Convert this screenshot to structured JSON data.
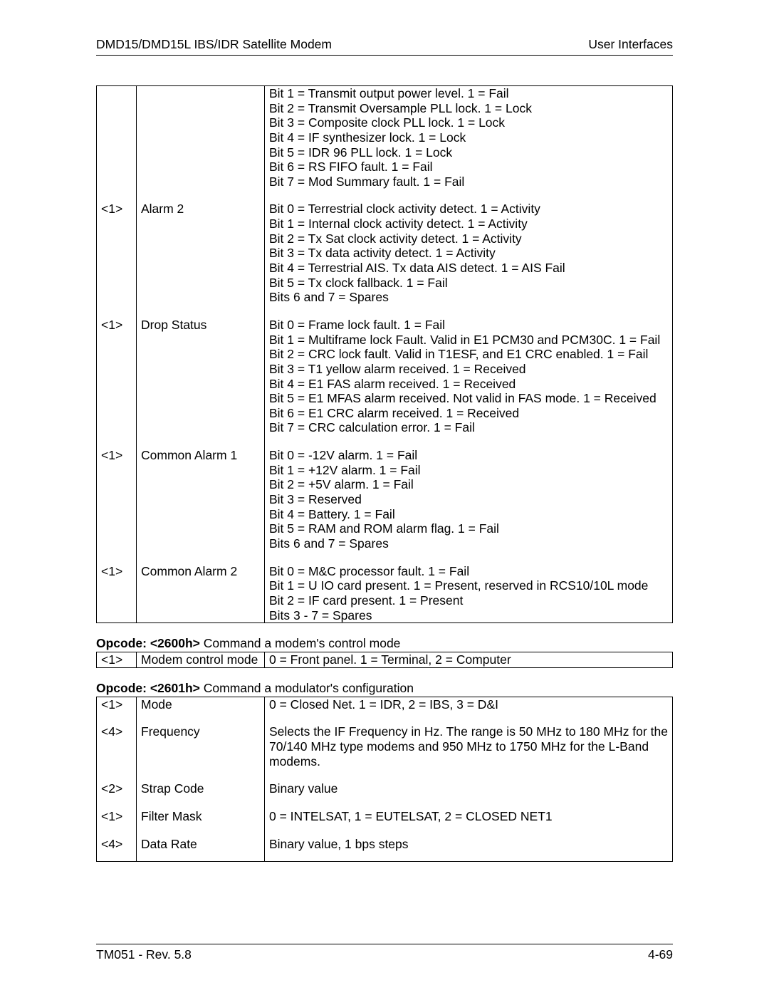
{
  "header": {
    "left": "DMD15/DMD15L IBS/IDR Satellite Modem",
    "right": "User Interfaces"
  },
  "footer": {
    "left": "TM051 - Rev. 5.8",
    "right": "4-69"
  },
  "table1": {
    "rows": [
      {
        "a": "",
        "b": "",
        "c": [
          "Bit 1 = Transmit output power level. 1 = Fail",
          "Bit 2 = Transmit Oversample PLL lock. 1 = Lock",
          "Bit 3 = Composite clock PLL lock. 1 = Lock",
          "Bit 4 = IF synthesizer lock. 1 = Lock",
          "Bit 5 = IDR 96 PLL lock. 1 = Lock",
          "Bit 6 = RS FIFO fault. 1 = Fail",
          "Bit 7 = Mod Summary fault. 1 = Fail"
        ]
      },
      {
        "a": "<1>",
        "b": "Alarm 2",
        "c": [
          "Bit 0 = Terrestrial clock activity detect. 1 = Activity",
          "Bit 1 = Internal clock activity detect. 1 = Activity",
          "Bit 2 = Tx Sat clock activity detect. 1 = Activity",
          "Bit 3 = Tx data activity detect. 1 = Activity",
          "Bit 4 = Terrestrial AIS. Tx data AIS detect. 1 = AIS Fail",
          "Bit 5 = Tx clock fallback. 1 = Fail",
          "Bits 6 and 7 = Spares"
        ]
      },
      {
        "a": "<1>",
        "b": "Drop Status",
        "c": [
          "Bit 0 = Frame lock fault. 1 = Fail",
          "Bit 1 = Multiframe lock Fault. Valid in E1 PCM30 and PCM30C. 1 = Fail",
          "Bit 2 = CRC lock fault. Valid in T1ESF, and E1 CRC enabled. 1 = Fail",
          "Bit 3 = T1 yellow alarm received. 1 = Received",
          "Bit 4 = E1 FAS alarm received. 1 = Received",
          "Bit 5 = E1 MFAS alarm received. Not valid in FAS mode. 1 = Received",
          "Bit 6 = E1 CRC alarm received. 1 = Received",
          "Bit 7 = CRC calculation error. 1 = Fail"
        ]
      },
      {
        "a": "<1>",
        "b": "Common Alarm 1",
        "c": [
          "Bit 0 = -12V alarm. 1 = Fail",
          "Bit 1 = +12V alarm. 1 = Fail",
          "Bit 2 = +5V alarm. 1 = Fail",
          "Bit 3 = Reserved",
          "Bit 4 = Battery. 1 = Fail",
          "Bit 5 = RAM and ROM alarm flag. 1 = Fail",
          "Bits 6 and 7 = Spares"
        ]
      },
      {
        "a": "<1>",
        "b": "Common Alarm 2",
        "c": [
          "Bit 0 = M&C processor fault. 1 = Fail",
          "Bit 1 = U IO card present. 1 = Present, reserved in RCS10/10L mode",
          "Bit 2 = IF card present. 1 = Present",
          "Bits 3 - 7 = Spares"
        ]
      }
    ]
  },
  "opcode1": {
    "bold": "Opcode: <2600h>",
    "rest": " Command a modem's control mode"
  },
  "table2": {
    "rows": [
      {
        "a": "<1>",
        "b": "Modem control mode",
        "c": [
          "0 = Front panel. 1 = Terminal, 2 = Computer"
        ]
      }
    ]
  },
  "opcode2": {
    "bold": "Opcode: <2601h>",
    "rest": " Command a modulator's configuration"
  },
  "table3": {
    "rows": [
      {
        "a": "<1>",
        "b": "Mode",
        "c": [
          "0 = Closed Net. 1 = IDR, 2 = IBS, 3 = D&I"
        ]
      },
      {
        "a": "<4>",
        "b": "Frequency",
        "c": [
          "Selects the IF Frequency in Hz. The range is 50 MHz to 180 MHz for the 70/140 MHz type modems and 950 MHz to 1750 MHz for the L-Band modems."
        ]
      },
      {
        "a": "<2>",
        "b": "Strap Code",
        "c": [
          "Binary value"
        ]
      },
      {
        "a": "<1>",
        "b": "Filter Mask",
        "c": [
          "0 = INTELSAT, 1 = EUTELSAT, 2 = CLOSED NET1"
        ]
      },
      {
        "a": "<4>",
        "b": "Data Rate",
        "c": [
          "Binary value, 1 bps steps"
        ]
      }
    ]
  }
}
